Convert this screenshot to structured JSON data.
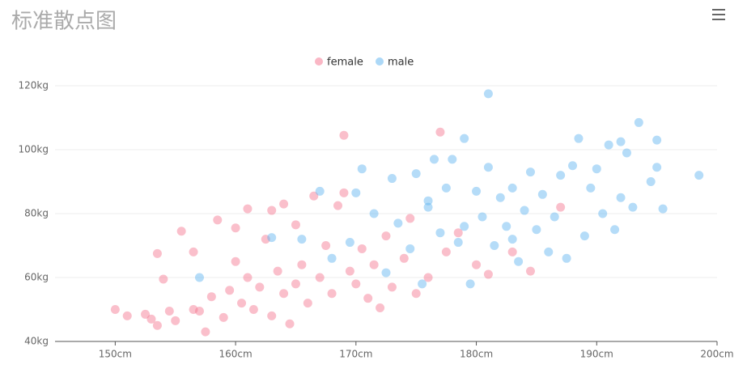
{
  "chart_data": {
    "type": "scatter",
    "title": "标准散点图",
    "xlim": [
      145,
      200
    ],
    "xticks": [
      {
        "value": 150,
        "label": "150cm"
      },
      {
        "value": 160,
        "label": "160cm"
      },
      {
        "value": 170,
        "label": "170cm"
      },
      {
        "value": 180,
        "label": "180cm"
      },
      {
        "value": 190,
        "label": "190cm"
      },
      {
        "value": 200,
        "label": "200cm"
      }
    ],
    "ylim": [
      40,
      120
    ],
    "yticks": [
      {
        "value": 40,
        "label": "40kg"
      },
      {
        "value": 60,
        "label": "60kg"
      },
      {
        "value": 80,
        "label": "80kg"
      },
      {
        "value": 100,
        "label": "100kg"
      },
      {
        "value": 120,
        "label": "120kg"
      }
    ],
    "grid": true,
    "legend": "top",
    "series": [
      {
        "name": "female",
        "color": "#f5708c",
        "x": [
          150,
          151,
          152.5,
          153,
          153.5,
          153.5,
          154,
          154.5,
          155,
          155.5,
          156.5,
          156.5,
          157,
          157.5,
          158,
          158.5,
          159,
          159.5,
          160,
          160,
          160.5,
          161,
          161,
          161.5,
          162,
          162.5,
          163,
          163,
          163.5,
          164,
          164,
          164.5,
          165,
          165,
          165.5,
          166,
          166.5,
          167,
          167.5,
          168,
          168.5,
          169,
          169,
          169.5,
          170,
          170.5,
          171,
          171.5,
          172,
          172.5,
          173,
          174,
          174.5,
          175,
          176,
          177,
          177.5,
          178.5,
          180,
          181,
          183,
          184.5,
          187
        ],
        "values": [
          50,
          48,
          48.5,
          47,
          45,
          67.5,
          59.5,
          49.5,
          46.5,
          74.5,
          50,
          68,
          49.5,
          43,
          54,
          78,
          47.5,
          56,
          75.5,
          65,
          52,
          81.5,
          60,
          50,
          57,
          72,
          81,
          48,
          62,
          83,
          55,
          45.5,
          76.5,
          58,
          64,
          52,
          85.5,
          60,
          70,
          55,
          82.5,
          104.5,
          86.5,
          62,
          58,
          69,
          53.5,
          64,
          50.5,
          73,
          57,
          66,
          78.5,
          55,
          60,
          105.5,
          68,
          74,
          64,
          61,
          68,
          62,
          82
        ]
      },
      {
        "name": "male",
        "color": "#5ab1ef",
        "x": [
          157,
          163,
          165.5,
          167,
          168,
          169.5,
          170,
          170.5,
          171.5,
          172.5,
          173,
          173.5,
          174.5,
          175,
          175.5,
          176,
          176.5,
          177,
          177.5,
          178,
          178.5,
          179,
          179.5,
          180,
          180.5,
          181,
          181,
          181.5,
          182,
          182.5,
          183,
          183.5,
          184,
          184.5,
          185,
          185.5,
          186,
          186.5,
          187,
          187.5,
          188,
          188.5,
          189,
          189.5,
          190,
          190.5,
          191,
          191.5,
          192,
          192,
          192.5,
          193,
          193.5,
          194.5,
          195,
          195,
          195.5,
          198.5,
          176,
          179,
          183
        ],
        "values": [
          60,
          72.5,
          72,
          87,
          66,
          71,
          86.5,
          94,
          80,
          61.5,
          91,
          77,
          69,
          92.5,
          58,
          82,
          97,
          74,
          88,
          97,
          71,
          103.5,
          58,
          87,
          79,
          117.5,
          94.5,
          70,
          85,
          76,
          88,
          65,
          81,
          93,
          75,
          86,
          68,
          79,
          92,
          66,
          95,
          103.5,
          73,
          88,
          94,
          80,
          101.5,
          75,
          85,
          102.5,
          99,
          82,
          108.5,
          90,
          103,
          94.5,
          81.5,
          92,
          84,
          76,
          72
        ]
      }
    ]
  }
}
